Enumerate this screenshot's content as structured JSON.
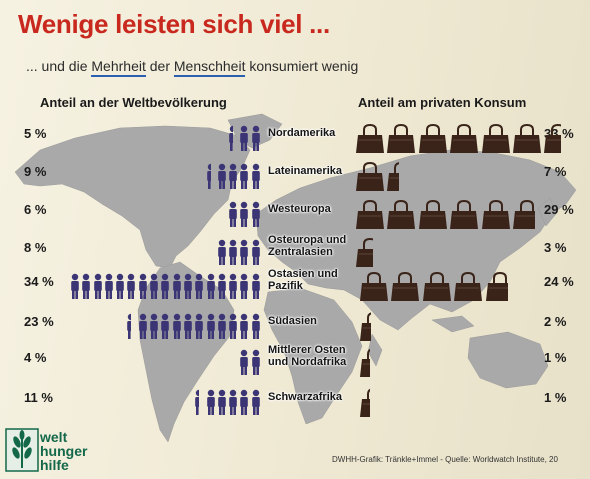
{
  "title": "Wenige leisten sich viel ...",
  "subtitle": {
    "parts": [
      {
        "text": "... und die ",
        "u": false
      },
      {
        "text": "Mehrheit",
        "u": true
      },
      {
        "text": " der ",
        "u": false
      },
      {
        "text": "Menschheit",
        "u": true
      },
      {
        "text": " konsumiert wenig",
        "u": false
      }
    ]
  },
  "chart_data": {
    "type": "pictogram",
    "left_header": "Anteil an der Weltbevölkerung",
    "right_header": "Anteil am privaten Konsum",
    "unit_per_person_icon": 2,
    "unit_per_bag_icon": 5,
    "rows": [
      {
        "region": "Nordamerika",
        "population_label": "5 %",
        "population": 5,
        "consumption_label": "33 %",
        "consumption": 33
      },
      {
        "region": "Lateinamerika",
        "population_label": "9 %",
        "population": 9,
        "consumption_label": "7 %",
        "consumption": 7
      },
      {
        "region": "Westeuropa",
        "population_label": "6 %",
        "population": 6,
        "consumption_label": "29 %",
        "consumption": 29
      },
      {
        "region": "Osteuropa und Zentralasien",
        "population_label": "8 %",
        "population": 8,
        "consumption_label": "3 %",
        "consumption": 3
      },
      {
        "region": "Ostasien und Pazifik",
        "population_label": "34 %",
        "population": 34,
        "consumption_label": "24 %",
        "consumption": 24
      },
      {
        "region": "Südasien",
        "population_label": "23 %",
        "population": 23,
        "consumption_label": "2 %",
        "consumption": 2
      },
      {
        "region": "Mittlerer Osten und Nordafrika",
        "population_label": "4 %",
        "population": 4,
        "consumption_label": "1 %",
        "consumption": 1
      },
      {
        "region": "Schwarzafrika",
        "population_label": "11 %",
        "population": 11,
        "consumption_label": "1 %",
        "consumption": 1
      }
    ]
  },
  "colors": {
    "title": "#c8281e",
    "person": "#3b3575",
    "bag": "#3a2419",
    "map": "#a7a7a7",
    "logo": "#14684a",
    "subtitle_underline": "#2b5fb0"
  },
  "credit": "DWHH-Grafik: Tränkle+Immel - Quelle: Worldwatch Institute, 20",
  "logo": {
    "lines": [
      "welt",
      "hunger",
      "hilfe"
    ],
    "icon": "wheat-icon"
  }
}
